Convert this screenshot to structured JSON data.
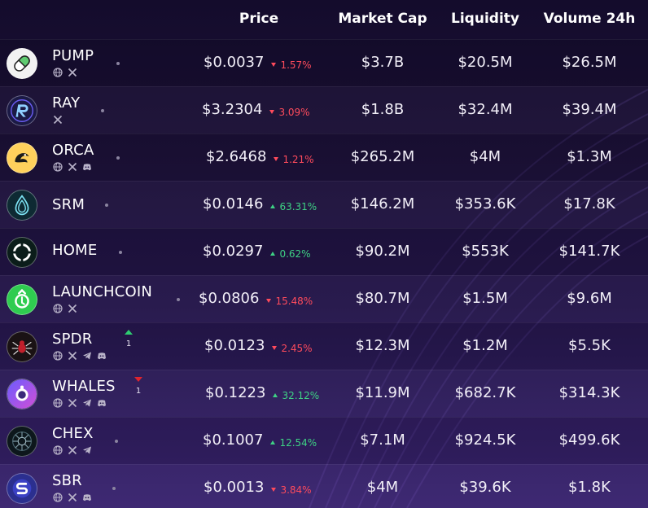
{
  "header": {
    "price": "Price",
    "market_cap": "Market Cap",
    "liquidity": "Liquidity",
    "volume_24h": "Volume 24h"
  },
  "colors": {
    "up": "#3ed184",
    "down": "#ff4b5c",
    "background": "#1c1138"
  },
  "rows": [
    {
      "name": "PUMP",
      "socials": [
        "globe-icon",
        "x-icon"
      ],
      "price": "$0.0037",
      "change": "1.57%",
      "direction": "down",
      "market_cap": "$3.7B",
      "liquidity": "$20.5M",
      "volume": "$26.5M"
    },
    {
      "name": "RAY",
      "socials": [
        "x-icon"
      ],
      "price": "$3.2304",
      "change": "3.09%",
      "direction": "down",
      "market_cap": "$1.8B",
      "liquidity": "$32.4M",
      "volume": "$39.4M"
    },
    {
      "name": "ORCA",
      "socials": [
        "globe-icon",
        "x-icon",
        "discord-icon"
      ],
      "price": "$2.6468",
      "change": "1.21%",
      "direction": "down",
      "market_cap": "$265.2M",
      "liquidity": "$4M",
      "volume": "$1.3M"
    },
    {
      "name": "SRM",
      "socials": [],
      "price": "$0.0146",
      "change": "63.31%",
      "direction": "up",
      "market_cap": "$146.2M",
      "liquidity": "$353.6K",
      "volume": "$17.8K"
    },
    {
      "name": "HOME",
      "socials": [],
      "price": "$0.0297",
      "change": "0.62%",
      "direction": "up",
      "market_cap": "$90.2M",
      "liquidity": "$553K",
      "volume": "$141.7K"
    },
    {
      "name": "LAUNCHCOIN",
      "socials": [
        "globe-icon",
        "x-icon"
      ],
      "price": "$0.0806",
      "change": "15.48%",
      "direction": "down",
      "market_cap": "$80.7M",
      "liquidity": "$1.5M",
      "volume": "$9.6M"
    },
    {
      "name": "SPDR",
      "socials": [
        "globe-icon",
        "x-icon",
        "telegram-icon",
        "discord-icon"
      ],
      "price": "$0.0123",
      "change": "2.45%",
      "direction": "down",
      "market_cap": "$12.3M",
      "liquidity": "$1.2M",
      "volume": "$5.5K",
      "vote": {
        "direction": "up",
        "count": "1"
      }
    },
    {
      "name": "WHALES",
      "socials": [
        "globe-icon",
        "x-icon",
        "telegram-icon",
        "discord-icon"
      ],
      "price": "$0.1223",
      "change": "32.12%",
      "direction": "up",
      "market_cap": "$11.9M",
      "liquidity": "$682.7K",
      "volume": "$314.3K",
      "vote": {
        "direction": "down",
        "count": "1"
      }
    },
    {
      "name": "CHEX",
      "socials": [
        "globe-icon",
        "x-icon",
        "telegram-icon"
      ],
      "price": "$0.1007",
      "change": "12.54%",
      "direction": "up",
      "market_cap": "$7.1M",
      "liquidity": "$924.5K",
      "volume": "$499.6K"
    },
    {
      "name": "SBR",
      "socials": [
        "globe-icon",
        "x-icon",
        "discord-icon"
      ],
      "price": "$0.0013",
      "change": "3.84%",
      "direction": "down",
      "market_cap": "$4M",
      "liquidity": "$39.6K",
      "volume": "$1.8K"
    }
  ]
}
